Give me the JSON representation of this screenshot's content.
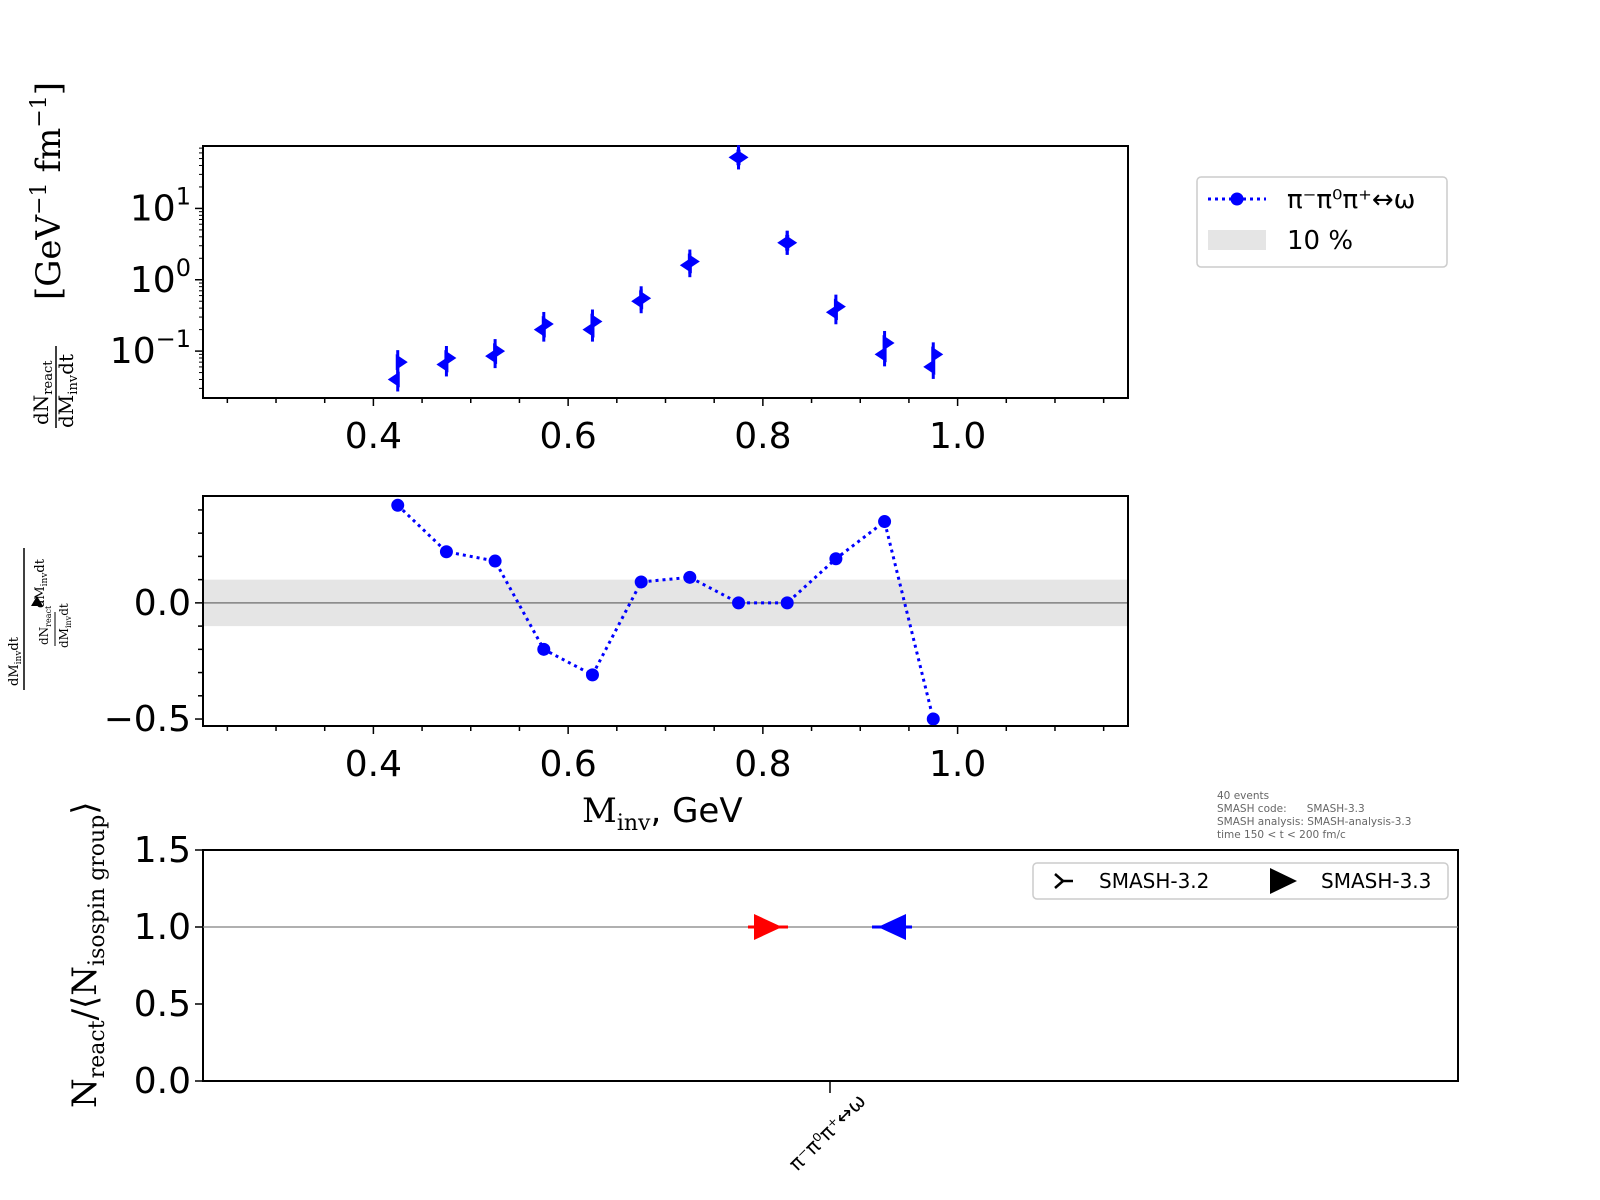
{
  "chart_data": [
    {
      "type": "scatter",
      "panel": "spectrum",
      "yscale": "log",
      "ylabel": "dN_react / dM_inv dt [GeV^-1 fm^-1]",
      "xlim": [
        0.225,
        1.175
      ],
      "x_ticks": [
        "0.4",
        "0.6",
        "0.8",
        "1.0"
      ],
      "y_ticks": [
        "10^-1",
        "10^0",
        "10^1"
      ],
      "x": [
        0.425,
        0.475,
        0.525,
        0.575,
        0.625,
        0.675,
        0.725,
        0.775,
        0.825,
        0.875,
        0.925,
        0.975
      ],
      "series": [
        {
          "name": "SMASH-3.2",
          "values": [
            0.07,
            0.08,
            0.1,
            0.24,
            0.26,
            0.55,
            1.8,
            52,
            3.3,
            0.42,
            0.13,
            0.09
          ]
        },
        {
          "name": "SMASH-3.3",
          "values": [
            0.04,
            0.065,
            0.085,
            0.2,
            0.2,
            0.5,
            1.6,
            52,
            3.3,
            0.35,
            0.09,
            0.06
          ]
        }
      ],
      "color": "#0000ff"
    },
    {
      "type": "line",
      "panel": "ratio",
      "ylabel": "(dN/dM_inv dt − dN/dM_inv dt▲) / dN/dM_inv dt",
      "xlabel": "M_inv, GeV",
      "xlim": [
        0.225,
        1.175
      ],
      "ylim": [
        -0.53,
        0.46
      ],
      "x_ticks": [
        "0.4",
        "0.6",
        "0.8",
        "1.0"
      ],
      "y_ticks": [
        "0.0",
        "−0.5"
      ],
      "band_percent": 0.1,
      "x": [
        0.425,
        0.475,
        0.525,
        0.575,
        0.625,
        0.675,
        0.725,
        0.775,
        0.825,
        0.875,
        0.925,
        0.975
      ],
      "values": [
        0.42,
        0.22,
        0.18,
        -0.2,
        -0.31,
        0.09,
        0.11,
        0.0,
        0.0,
        0.19,
        0.35,
        -0.5
      ],
      "series_name": "π⁻π⁰π⁺↔ω",
      "color": "#0000ff"
    },
    {
      "type": "scatter",
      "panel": "totals",
      "ylabel": "N_react/⟨N_isospin group⟩",
      "ylim": [
        0.0,
        1.5
      ],
      "y_ticks": [
        "0.0",
        "0.5",
        "1.0",
        "1.5"
      ],
      "categories": [
        "π⁻π⁰π⁺↔ω"
      ],
      "points": [
        {
          "color": "#ff0000",
          "value": 1.0,
          "offset": "left"
        },
        {
          "color": "#0000ff",
          "value": 1.0,
          "offset": "right"
        }
      ]
    }
  ],
  "labels": {
    "spectrum_ylabel_unit": "[GeV",
    "spectrum_ylabel_sup1": "−1",
    "spectrum_ylabel_fm": "fm",
    "spectrum_ylabel_sup2": "−1",
    "spectrum_ylabel_close": "]",
    "spectrum_ylabel_num": "dN",
    "spectrum_ylabel_num_sub": "react",
    "spectrum_ylabel_den": "dM",
    "spectrum_ylabel_den_sub": "inv",
    "spectrum_ylabel_den2": "dt",
    "ratio_num_main": "dM",
    "ratio_num_sub": "inv",
    "ratio_num_end": "dt",
    "ratio_inner_num": "dN",
    "ratio_inner_num_sub": "react",
    "ratio_inner_den": "dM",
    "ratio_inner_den_sub": "inv",
    "ratio_inner_den_end": "dt",
    "xlabel_main": "M",
    "xlabel_sub": "inv",
    "xlabel_rest": ", GeV",
    "totals_ylabel_main": "N",
    "totals_ylabel_sub": "react",
    "totals_ylabel_mid": "/⟨N",
    "totals_ylabel_sub2": "isospin group",
    "totals_ylabel_end": "⟩",
    "legend1_series": "π⁻π⁰π⁺↔ω",
    "legend1_band": "10 %",
    "legend3_a": "SMASH-3.2",
    "legend3_b": "SMASH-3.3",
    "info_line1": "40 events",
    "info_line2": "SMASH code:      SMASH-3.3",
    "info_line3": "SMASH analysis: SMASH-analysis-3.3",
    "info_line4": "time 150 < t < 200 fm/c",
    "category_label": "π⁻π⁰π⁺↔ω"
  }
}
